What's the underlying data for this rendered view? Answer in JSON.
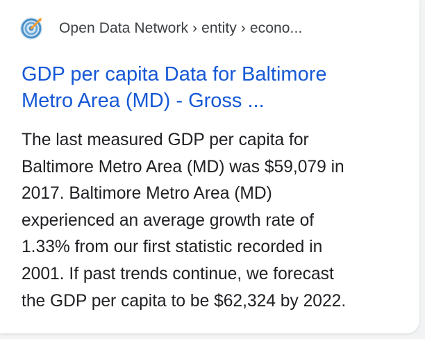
{
  "result": {
    "favicon": "open-data-network-target-icon",
    "source": "Open Data Network",
    "breadcrumb_path": "Open Data Network › entity › econo...",
    "title_line1": "GDP per capita Data for Baltimore",
    "title_line2": "Metro Area (MD) - Gross ...",
    "snippet_lines": [
      "The last measured GDP per capita for",
      "Baltimore Metro Area (MD) was $59,079 in",
      "2017. Baltimore Metro Area (MD)",
      "experienced an average growth rate of",
      "1.33% from our first statistic recorded in",
      "2001. If past trends continue, we forecast",
      "the GDP per capita to be $62,324 by 2022."
    ]
  },
  "colors": {
    "link": "#1558d6",
    "text": "#202124",
    "breadcrumb": "#3c4043",
    "favicon_blue": "#4a90c8",
    "favicon_orange": "#f39c33"
  }
}
